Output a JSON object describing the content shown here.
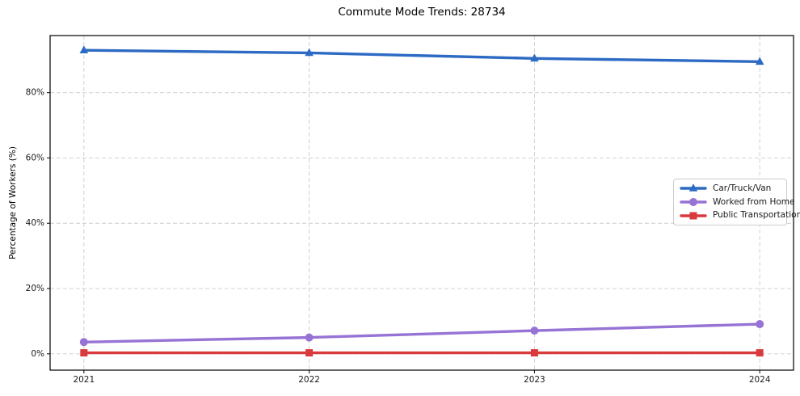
{
  "chart_data": {
    "type": "line",
    "title": "Commute Mode Trends: 28734",
    "xlabel": "",
    "ylabel": "Percentage of Workers (%)",
    "x": [
      2021,
      2022,
      2023,
      2024
    ],
    "x_tick_labels": [
      "2021",
      "2022",
      "2023",
      "2024"
    ],
    "yticks": [
      0,
      20,
      40,
      60,
      80
    ],
    "y_tick_labels": [
      "0%",
      "20%",
      "40%",
      "60%",
      "80%"
    ],
    "xlim": [
      2020.85,
      2024.15
    ],
    "ylim": [
      -5,
      97.5
    ],
    "grid": "dashed",
    "grid_color": "#cccccc",
    "axis_color": "#000000",
    "tick_label_color": "#1a1a1a",
    "legend_position": "center right",
    "series": [
      {
        "name": "Car/Truck/Van",
        "marker": "triangle",
        "color": "#2d6ac4",
        "values": [
          93.0,
          92.2,
          90.5,
          89.5
        ]
      },
      {
        "name": "Worked from Home",
        "marker": "circle",
        "color": "#9673d4",
        "values": [
          3.6,
          5.0,
          7.1,
          9.1
        ]
      },
      {
        "name": "Public Transportation",
        "marker": "square",
        "color": "#d83a3d",
        "values": [
          0.3,
          0.3,
          0.3,
          0.3
        ]
      }
    ]
  }
}
